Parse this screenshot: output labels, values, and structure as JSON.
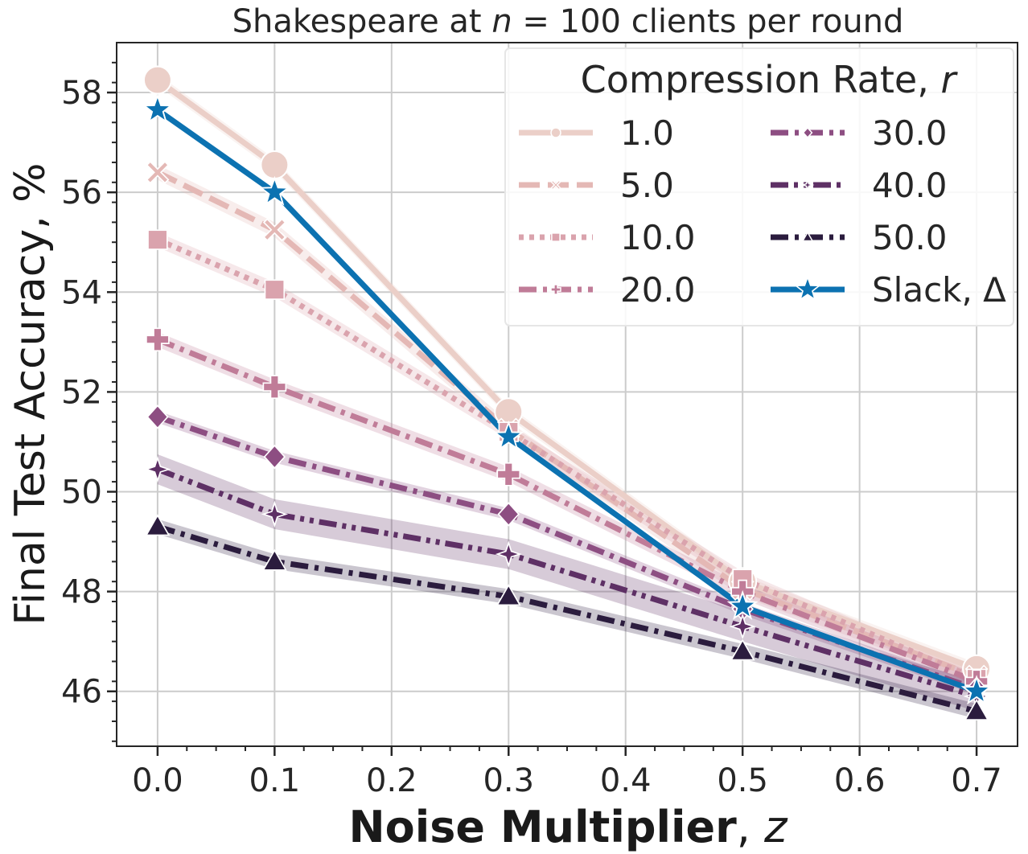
{
  "chart_data": {
    "type": "line",
    "title": "Shakespeare at n = 100 clients per round",
    "title_parts": [
      "Shakespeare at ",
      "n",
      " = 100 clients per round"
    ],
    "xlabel": "Noise Multiplier, z",
    "xlabel_parts": [
      "Noise Multiplier",
      ", ",
      "z"
    ],
    "ylabel": "Final Test Accuracy, %",
    "xlim": [
      -0.035,
      0.735
    ],
    "ylim": [
      44.9,
      59.0
    ],
    "x": [
      0.0,
      0.1,
      0.3,
      0.5,
      0.7
    ],
    "x_ticks": [
      0.0,
      0.1,
      0.2,
      0.3,
      0.4,
      0.5,
      0.6,
      0.7
    ],
    "x_tick_labels": [
      "0.0",
      "0.1",
      "0.2",
      "0.3",
      "0.4",
      "0.5",
      "0.6",
      "0.7"
    ],
    "y_ticks": [
      46,
      48,
      50,
      52,
      54,
      56,
      58
    ],
    "y_tick_labels": [
      "46",
      "48",
      "50",
      "52",
      "54",
      "56",
      "58"
    ],
    "grid": true,
    "legend": {
      "title": "Compression Rate, r",
      "title_parts": [
        "Compression Rate, ",
        "r"
      ],
      "placement": "top-right",
      "columns": 2
    },
    "series": [
      {
        "name": "1.0",
        "values": [
          58.25,
          56.55,
          51.6,
          48.2,
          46.45
        ],
        "color": "#ebcfc8",
        "marker": "circle",
        "dash": "solid",
        "band": 0.12
      },
      {
        "name": "5.0",
        "values": [
          56.4,
          55.25,
          51.25,
          48.05,
          46.3
        ],
        "color": "#e4b8b5",
        "marker": "x",
        "dash": "dashed",
        "band": 0.15
      },
      {
        "name": "10.0",
        "values": [
          55.05,
          54.05,
          51.2,
          48.25,
          46.25
        ],
        "color": "#daa3ad",
        "marker": "square",
        "dash": "dotted",
        "band": 0.15
      },
      {
        "name": "20.0",
        "values": [
          53.05,
          52.1,
          50.35,
          48.0,
          46.2
        ],
        "color": "#c07c98",
        "marker": "plus",
        "dash": "dashdot",
        "band": 0.15
      },
      {
        "name": "30.0",
        "values": [
          51.5,
          50.7,
          49.55,
          47.65,
          46.05
        ],
        "color": "#8d4e82",
        "marker": "diamond",
        "dash": "dashdot",
        "band": 0.12
      },
      {
        "name": "40.0",
        "values": [
          50.45,
          49.55,
          48.75,
          47.3,
          45.9
        ],
        "color": "#5e3065",
        "marker": "star4",
        "dash": "dashdotdot",
        "band": 0.3
      },
      {
        "name": "50.0",
        "values": [
          49.3,
          48.6,
          47.9,
          46.8,
          45.6
        ],
        "color": "#2b1c3e",
        "marker": "triangle",
        "dash": "dashdot",
        "band": 0.15
      },
      {
        "name": "Slack, Δ",
        "values": [
          57.65,
          56.0,
          51.1,
          47.7,
          46.0
        ],
        "color": "#0c72b1",
        "marker": "star",
        "dash": "solid",
        "band": 0
      }
    ]
  }
}
